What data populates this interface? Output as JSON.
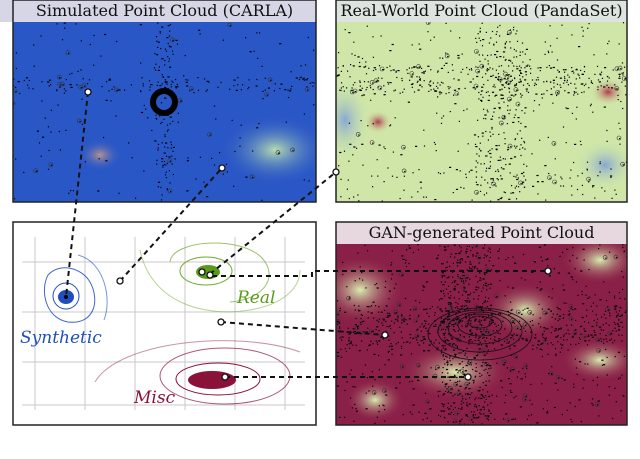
{
  "panels": {
    "carla_title": "Simulated Point Cloud (CARLA)",
    "pandaset_title": "Real-World Point Cloud (PandaSet)",
    "gan_title": "GAN-generated Point Cloud"
  },
  "latent_space": {
    "synthetic_label": "Synthetic",
    "real_label": "Real",
    "misc_label": "Misc"
  },
  "colors": {
    "synthetic": "#1f4fbf",
    "real": "#5a9a1a",
    "misc": "#8a1238",
    "carla_bg": "#2a57c6",
    "pandaset_bg": "#cfe6a8",
    "gan_bg": "#8a1f47",
    "connector": "#111111"
  }
}
